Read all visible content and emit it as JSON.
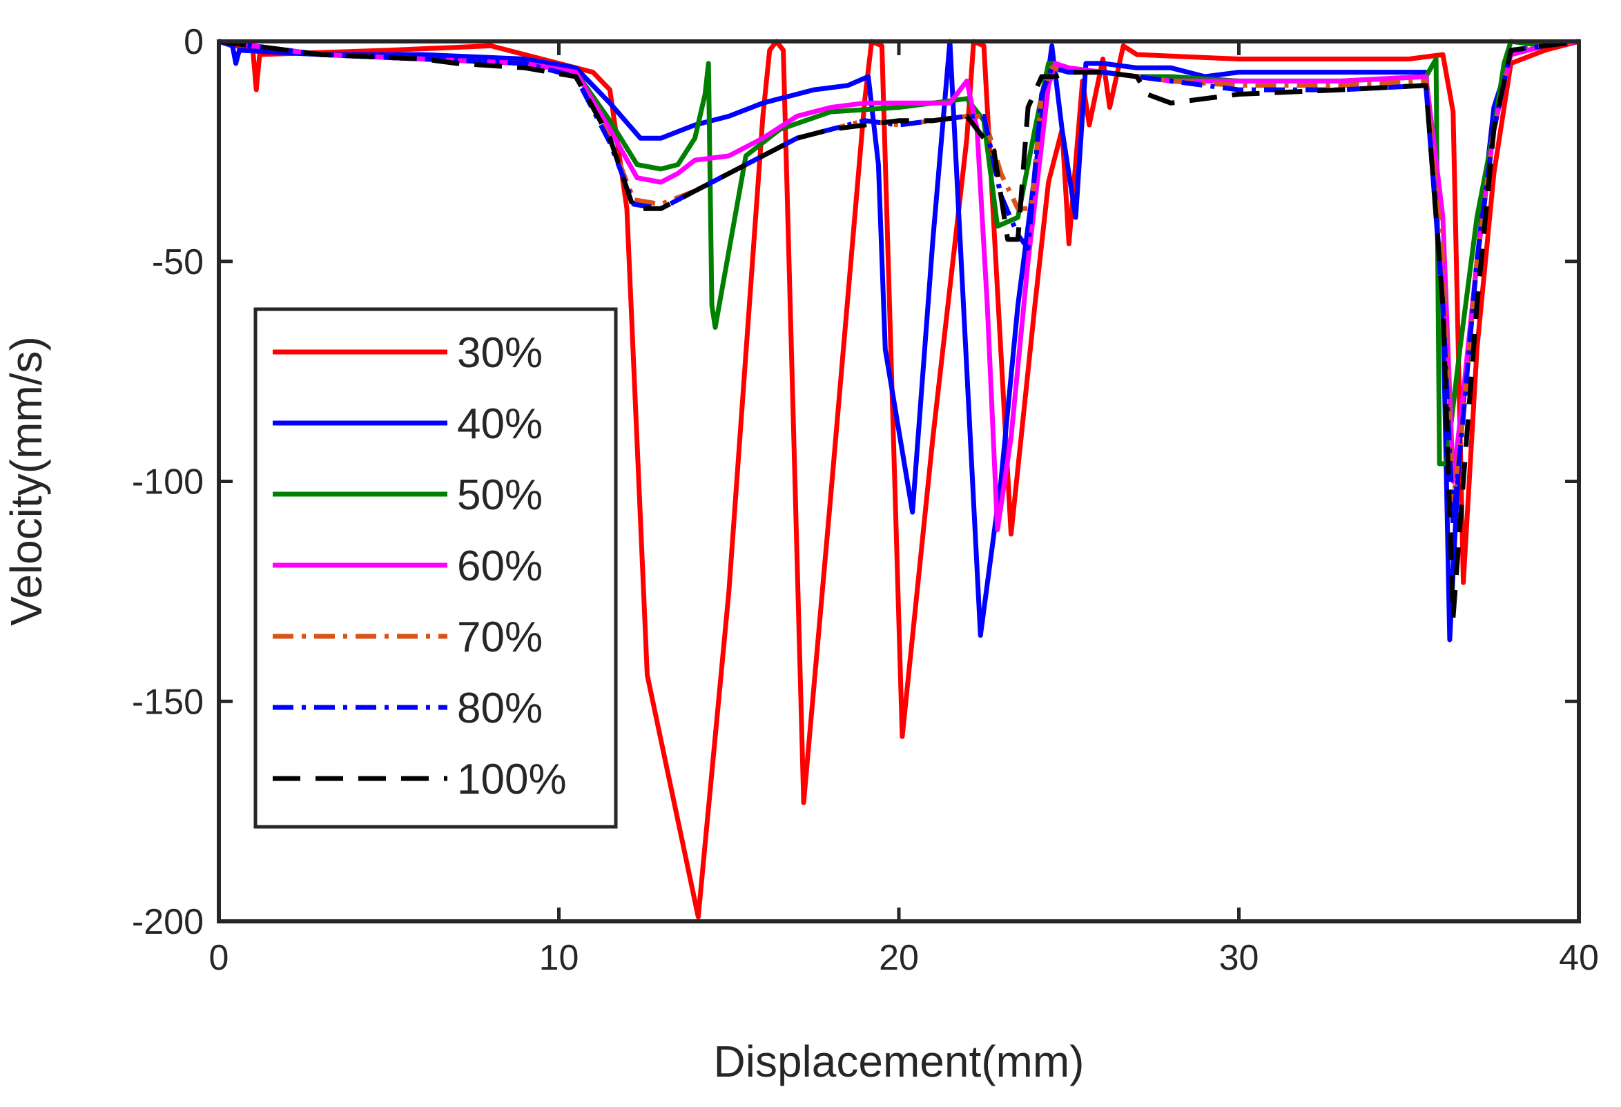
{
  "chart_data": {
    "type": "line",
    "title": "",
    "xlabel": "Displacement(mm)",
    "ylabel": "Velocity(mm/s)",
    "xlim": [
      0,
      40
    ],
    "ylim": [
      -200,
      0
    ],
    "xticks": [
      0,
      10,
      20,
      30,
      40
    ],
    "yticks": [
      0,
      -50,
      -100,
      -150,
      -200
    ],
    "xtick_labels": [
      "0",
      "10",
      "20",
      "30",
      "40"
    ],
    "ytick_labels": [
      "0",
      "-50",
      "-100",
      "-150",
      "-200"
    ],
    "grid": false,
    "legend_position": "left-middle",
    "series": [
      {
        "name": "30%",
        "color": "#ff0000",
        "style": "solid",
        "x": [
          0,
          1,
          1.1,
          1.2,
          5,
          8,
          10,
          11,
          11.5,
          12,
          12.6,
          14.1,
          15,
          16,
          16.2,
          16.4,
          16.6,
          17.2,
          18,
          19,
          19.2,
          19.5,
          20.1,
          21,
          22,
          22.2,
          22.5,
          23.3,
          24,
          24.4,
          24.8,
          25,
          25.4,
          25.6,
          26,
          26.2,
          26.6,
          27,
          30,
          35,
          36,
          36.3,
          36.6,
          37,
          37.5,
          38,
          39,
          40
        ],
        "y": [
          0,
          -2,
          -11,
          -3,
          -2,
          -1,
          -5,
          -7,
          -11,
          -38,
          -144,
          -199,
          -125,
          -17,
          -2,
          0,
          -2,
          -173,
          -103,
          -13,
          0,
          -1,
          -158,
          -90,
          -22,
          0,
          -1,
          -112,
          -60,
          -32,
          -20,
          -46,
          -9,
          -19,
          -4,
          -15,
          -1,
          -3,
          -4,
          -4,
          -3,
          -16,
          -123,
          -70,
          -30,
          -5,
          -2,
          0
        ]
      },
      {
        "name": "40%",
        "color": "#0000ff",
        "style": "solid",
        "x": [
          0,
          0.4,
          0.5,
          0.6,
          3,
          6,
          9,
          10.5,
          11.5,
          12.4,
          13,
          14,
          15,
          16,
          17,
          17.5,
          18.5,
          19.1,
          19.4,
          19.6,
          20.4,
          21,
          21.5,
          22.4,
          23,
          23.5,
          24,
          24.5,
          24.8,
          25.2,
          25.5,
          26,
          27,
          28,
          29,
          30,
          33,
          35.5,
          36,
          36.2,
          36.5,
          37,
          37.5,
          38,
          39,
          40
        ],
        "y": [
          0,
          -1,
          -5,
          -2,
          -3,
          -3,
          -4,
          -6,
          -14,
          -22,
          -22,
          -19,
          -17,
          -14,
          -12,
          -11,
          -10,
          -8,
          -28,
          -70,
          -107,
          -45,
          0,
          -135,
          -100,
          -60,
          -30,
          -1,
          -20,
          -40,
          -5,
          -5,
          -6,
          -6,
          -8,
          -7,
          -7,
          -7,
          -60,
          -136,
          -90,
          -50,
          -15,
          -3,
          -1,
          0
        ]
      },
      {
        "name": "50%",
        "color": "#007f00",
        "style": "solid",
        "x": [
          0,
          3,
          6,
          9,
          10.5,
          11.5,
          12.3,
          13,
          13.5,
          14,
          14.3,
          14.4,
          14.5,
          14.6,
          15.5,
          16.5,
          18,
          20,
          21,
          22,
          22.5,
          22.9,
          23.5,
          24,
          24.4,
          24.6,
          25,
          26,
          27,
          28,
          30,
          33,
          35.5,
          35.8,
          35.9,
          36.1,
          36.5,
          37,
          37.5,
          37.8,
          38,
          39,
          40
        ],
        "y": [
          0,
          -3,
          -4,
          -5,
          -7,
          -18,
          -28,
          -29,
          -28,
          -22,
          -12,
          -5,
          -60,
          -65,
          -26,
          -20,
          -16,
          -15,
          -14,
          -13,
          -18,
          -42,
          -40,
          -20,
          -5,
          -5,
          -7,
          -7,
          -8,
          -8,
          -9,
          -9,
          -8,
          -4,
          -96,
          -96,
          -70,
          -40,
          -20,
          -5,
          0,
          -1,
          0
        ]
      },
      {
        "name": "60%",
        "color": "#ff00ff",
        "style": "solid",
        "x": [
          0,
          3,
          6,
          9,
          10.5,
          11.5,
          12.3,
          13,
          13.5,
          14,
          15,
          16,
          17,
          18,
          19,
          20,
          21,
          21.5,
          22,
          22.3,
          22.6,
          22.9,
          23.3,
          23.8,
          24.4,
          24.6,
          25,
          26,
          27,
          28,
          30,
          33,
          35.5,
          36,
          36.3,
          36.6,
          37,
          37.5,
          38,
          39,
          40
        ],
        "y": [
          0,
          -3,
          -4,
          -5,
          -7,
          -20,
          -31,
          -32,
          -30,
          -27,
          -26,
          -22,
          -17,
          -15,
          -14,
          -14,
          -14,
          -14,
          -9,
          -20,
          -60,
          -111,
          -90,
          -50,
          -10,
          -5,
          -6,
          -7,
          -8,
          -9,
          -9,
          -9,
          -8,
          -40,
          -100,
          -80,
          -50,
          -20,
          -3,
          -1,
          0
        ]
      },
      {
        "name": "70%",
        "color": "#d95319",
        "style": "dashdot",
        "x": [
          0,
          3,
          6,
          9,
          10.5,
          11.5,
          12.2,
          13,
          14,
          15,
          16,
          17,
          18,
          19,
          20,
          21,
          22,
          22.5,
          23,
          23.5,
          23.9,
          24.2,
          24.5,
          25,
          26,
          27,
          28,
          30,
          33,
          35.5,
          36,
          36.3,
          36.6,
          37,
          37.5,
          38,
          39,
          40
        ],
        "y": [
          0,
          -3,
          -4,
          -5,
          -8,
          -22,
          -36,
          -37,
          -34,
          -30,
          -26,
          -22,
          -20,
          -18,
          -19,
          -18,
          -17,
          -17,
          -30,
          -38,
          -38,
          -12,
          -6,
          -7,
          -7,
          -8,
          -9,
          -10,
          -10,
          -9,
          -50,
          -105,
          -85,
          -50,
          -20,
          -2,
          -1,
          0
        ]
      },
      {
        "name": "80%",
        "color": "#0000ff",
        "style": "dashdot",
        "x": [
          0,
          3,
          6,
          9,
          10.5,
          11.5,
          12.2,
          13,
          14,
          15,
          16,
          17,
          18,
          19,
          20,
          21,
          22,
          22.5,
          23,
          23.5,
          23.8,
          24.2,
          24.5,
          25,
          26,
          27,
          28,
          30,
          33,
          35.5,
          36,
          36.3,
          36.6,
          37,
          37.5,
          38,
          39,
          40
        ],
        "y": [
          0,
          -3,
          -4,
          -5,
          -8,
          -23,
          -37,
          -38,
          -34,
          -30,
          -26,
          -22,
          -20,
          -18,
          -19,
          -18,
          -17,
          -17,
          -35,
          -44,
          -47,
          -12,
          -6,
          -7,
          -7,
          -8,
          -9,
          -11,
          -11,
          -10,
          -60,
          -110,
          -85,
          -50,
          -20,
          -2,
          -1,
          0
        ]
      },
      {
        "name": "100%",
        "color": "#000000",
        "style": "dashed",
        "x": [
          0,
          3,
          6,
          7,
          9,
          10.5,
          11.5,
          12.2,
          13,
          14,
          15,
          16,
          17,
          18,
          19,
          20,
          21,
          22,
          22.8,
          23.2,
          23.5,
          23.8,
          24.2,
          24.6,
          25,
          26,
          27,
          27.3,
          28,
          30,
          33,
          35.5,
          36,
          36.3,
          36.6,
          37,
          37.5,
          38,
          39,
          40
        ],
        "y": [
          0,
          -3,
          -4,
          -5,
          -6,
          -8,
          -22,
          -38,
          -38,
          -34,
          -30,
          -26,
          -22,
          -20,
          -19,
          -18,
          -18,
          -17,
          -25,
          -45,
          -45,
          -15,
          -8,
          -8,
          -7,
          -7,
          -8,
          -12,
          -14,
          -12,
          -11,
          -10,
          -60,
          -131,
          -100,
          -60,
          -20,
          -2,
          -1,
          0
        ]
      }
    ]
  }
}
